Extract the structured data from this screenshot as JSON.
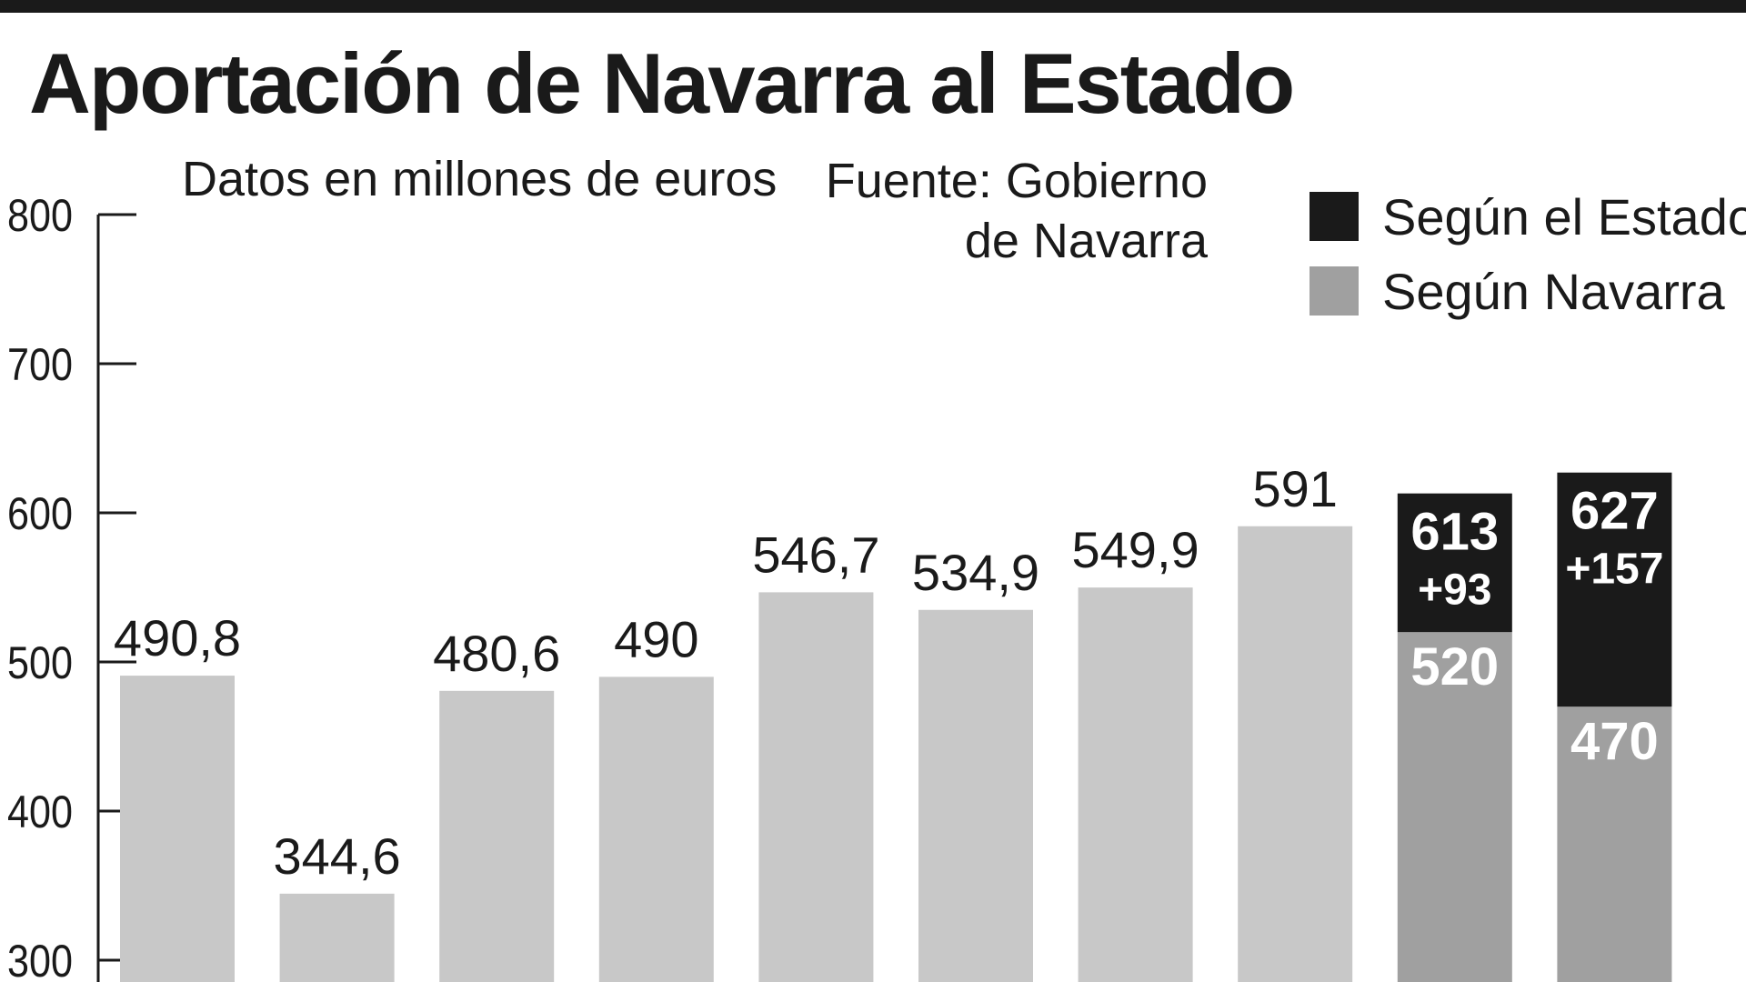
{
  "header": {
    "title": "Aportación de Navarra al Estado",
    "subtitle": "Datos en millones de euros",
    "source_line1": "Fuente: Gobierno",
    "source_line2": "de Navarra"
  },
  "legend": [
    {
      "label": "Según el Estado",
      "color": "#1a1a1a"
    },
    {
      "label": "Según Navarra",
      "color": "#a0a0a0"
    }
  ],
  "colors": {
    "bar": "#c8c8c8",
    "navarra": "#a0a0a0",
    "estado": "#1a1a1a",
    "axis": "#1a1a1a"
  },
  "chart_data": {
    "type": "bar",
    "title": "Aportación de Navarra al Estado",
    "subtitle": "Datos en millones de euros",
    "ylim": [
      300,
      800
    ],
    "yticks": [
      300,
      400,
      500,
      600,
      700,
      800
    ],
    "legend_position": "top-right",
    "bars": [
      {
        "value": 490.8,
        "label": "490,8"
      },
      {
        "value": 344.6,
        "label": "344,6"
      },
      {
        "value": 480.6,
        "label": "480,6"
      },
      {
        "value": 490,
        "label": "490"
      },
      {
        "value": 546.7,
        "label": "546,7"
      },
      {
        "value": 534.9,
        "label": "534,9"
      },
      {
        "value": 549.9,
        "label": "549,9"
      },
      {
        "value": 591,
        "label": "591"
      },
      {
        "value": 520,
        "label": "520",
        "estado_total": 613,
        "estado_total_label": "613",
        "difference_label": "+93"
      },
      {
        "value": 470,
        "label": "470",
        "estado_total": 627,
        "estado_total_label": "627",
        "difference_label": "+157"
      }
    ]
  }
}
